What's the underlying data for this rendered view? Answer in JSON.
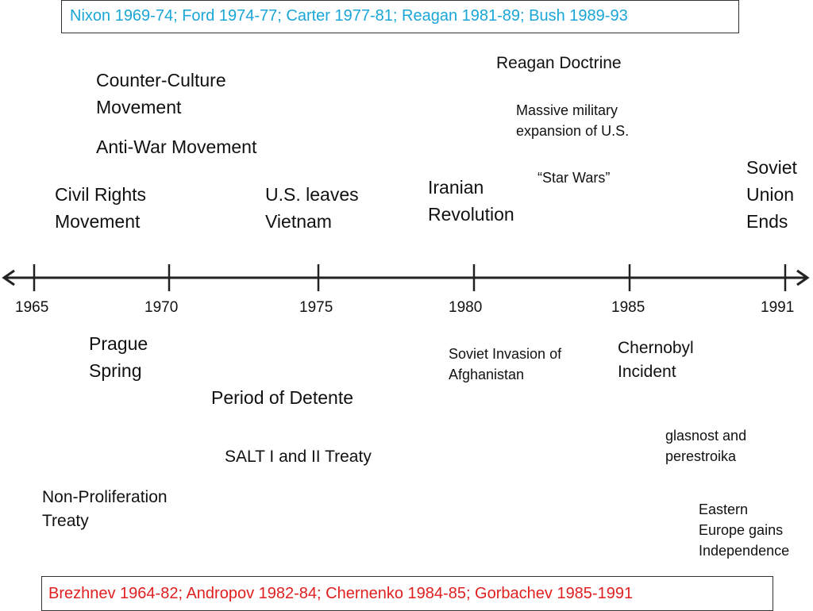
{
  "header": {
    "presidents": "Nixon 1969-74; Ford 1974-77; Carter 1977-81; Reagan 1981-89; Bush 1989-93"
  },
  "footer": {
    "soviet_leaders": "Brezhnev 1964-82; Andropov 1982-84; Chernenko 1984-85; Gorbachev 1985-1991"
  },
  "colors": {
    "presidents_text": "#1aa6d6",
    "soviet_text": "#e02020",
    "axis": "#222222"
  },
  "timeline": {
    "years": [
      "1965",
      "1970",
      "1975",
      "1980",
      "1985",
      "1991"
    ]
  },
  "events_above": {
    "counter_culture": "Counter-Culture\nMovement",
    "anti_war": "Anti-War Movement",
    "civil_rights": "Civil Rights\nMovement",
    "us_leaves_vietnam": "U.S. leaves\nVietnam",
    "iranian_revolution": "Iranian\nRevolution",
    "reagan_doctrine": "Reagan Doctrine",
    "military_expansion": "Massive military\nexpansion of U.S.",
    "star_wars": "“Star Wars”",
    "soviet_union_ends": "Soviet\nUnion\nEnds"
  },
  "events_below": {
    "prague_spring": "Prague\nSpring",
    "detente": "Period of Detente",
    "salt": "SALT I and II Treaty",
    "non_proliferation": "Non-Proliferation\nTreaty",
    "afghanistan": "Soviet Invasion of\nAfghanistan",
    "chernobyl": "Chernobyl\n Incident",
    "glasnost": "glasnost and\nperestroika",
    "eastern_europe": "Eastern\nEurope gains\nIndependence"
  }
}
